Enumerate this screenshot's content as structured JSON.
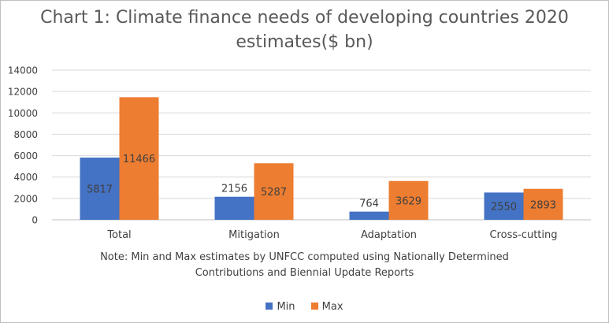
{
  "chart_data": {
    "type": "bar",
    "title_line1": "Chart 1: Climate finance needs of developing countries 2020",
    "title_line2": "estimates($ bn)",
    "categories": [
      "Total",
      "Mitigation",
      "Adaptation",
      "Cross-cutting"
    ],
    "series": [
      {
        "name": "Min",
        "color": "#4472c4",
        "values": [
          5817,
          2156,
          764,
          2550
        ]
      },
      {
        "name": "Max",
        "color": "#ed7d31",
        "values": [
          11466,
          5287,
          3629,
          2893
        ]
      }
    ],
    "ylim": [
      0,
      14000
    ],
    "yticks": [
      "0",
      "2000",
      "4000",
      "6000",
      "8000",
      "10000",
      "12000",
      "14000"
    ],
    "grid": true,
    "legend_position": "bottom",
    "note_line1": "Note:  Min and Max estimates by UNFCC computed  using Nationally Determined",
    "note_line2": "Contributions and Biennial Update Reports",
    "xlabel": "",
    "ylabel": ""
  }
}
